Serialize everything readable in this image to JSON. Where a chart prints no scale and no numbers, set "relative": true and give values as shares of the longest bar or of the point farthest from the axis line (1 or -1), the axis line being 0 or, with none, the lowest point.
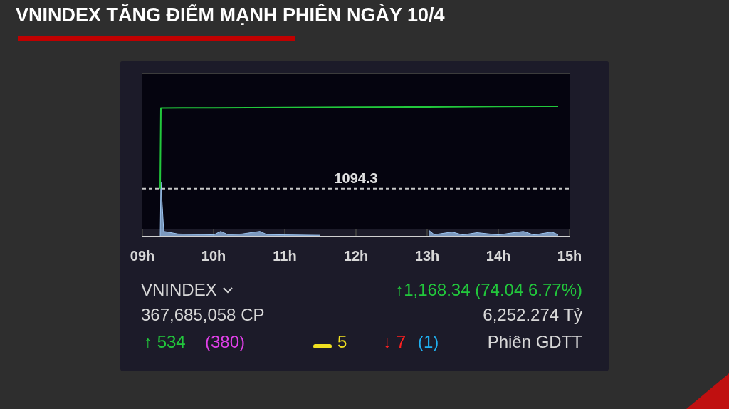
{
  "chart_data": {
    "type": "line",
    "title": "VNINDEX TĂNG ĐIỂM MẠNH PHIÊN NGÀY 10/4",
    "relative": true,
    "xlim": [
      9,
      15
    ],
    "xticks": [
      {
        "value": 9,
        "label": "09h"
      },
      {
        "value": 10,
        "label": "10h"
      },
      {
        "value": 11,
        "label": "11h"
      },
      {
        "value": 12,
        "label": "12h"
      },
      {
        "value": 13,
        "label": "13h"
      },
      {
        "value": 14,
        "label": "14h"
      },
      {
        "value": 15,
        "label": "15h"
      }
    ],
    "tick_labels": "x",
    "grid": true,
    "legend": false,
    "marker": "none",
    "series": [
      {
        "color": "#22c83c",
        "x": [
          9.25,
          9.26,
          10,
          11,
          12,
          13,
          14,
          14.84
        ],
        "values": [
          0.368,
          0.987,
          0.988,
          0.99,
          0.993,
          0.995,
          0.998,
          1
        ]
      },
      {
        "type": "area",
        "color": "#9cc4f0",
        "x": [
          9.25,
          9.26,
          9.3,
          9.5,
          10,
          10.1,
          10.2,
          10.4,
          10.65,
          10.75,
          11,
          11.5,
          12,
          13.02,
          13.1,
          13.35,
          13.5,
          13.7,
          14,
          14.35,
          14.5,
          14.75,
          14.84
        ],
        "values": [
          0,
          0.42,
          0.04,
          0.02,
          0.013,
          0.04,
          0.015,
          0.02,
          0.04,
          0.015,
          0.013,
          0.01,
          null,
          0.05,
          0.015,
          0.035,
          0.013,
          0.03,
          0.013,
          0.04,
          0.013,
          0.035,
          0.015
        ]
      }
    ],
    "ref_lines": [
      {
        "axis": "y",
        "value": 0.368,
        "color": "#c8c8c8",
        "line_style": "dashed"
      }
    ],
    "annotations": [
      {
        "text": "1094.3",
        "x": 12,
        "y": 0.368
      },
      "VNINDEX",
      "↑1,168.34 (74.04 6.77%)",
      "367,685,058 CP",
      "6,252.274 Tỷ",
      "↑ 534",
      "(380)",
      "5",
      "↓ 7",
      "(1)",
      "Phiên GDTT"
    ]
  }
}
